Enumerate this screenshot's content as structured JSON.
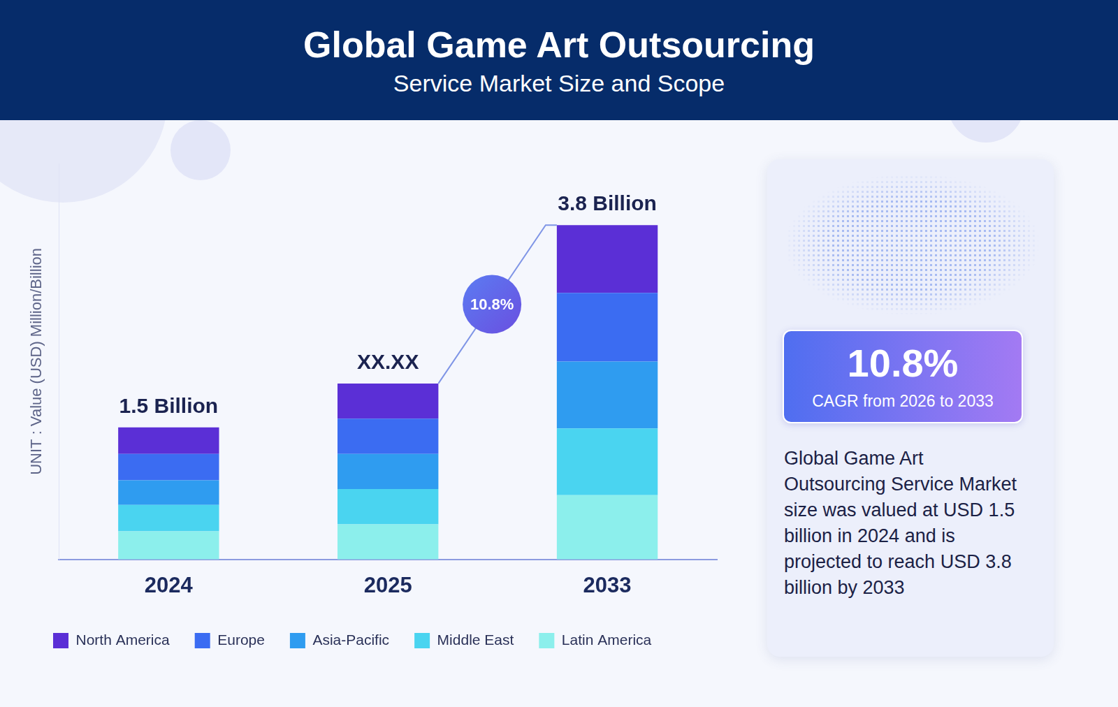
{
  "chart_data": {
    "type": "bar",
    "title": "Global Game Art Outsourcing",
    "subtitle": "Service Market Size and Scope",
    "y_label": "UNIT : Value (USD) Million/Billion",
    "categories": [
      "2024",
      "2025",
      "2033"
    ],
    "series": [
      {
        "name": "North America",
        "color": "#5b2fd6",
        "values": [
          0.3,
          0.4,
          0.77
        ]
      },
      {
        "name": "Europe",
        "color": "#3b6cf2",
        "values": [
          0.3,
          0.4,
          0.78
        ]
      },
      {
        "name": "Asia-Pacific",
        "color": "#2f9cf0",
        "values": [
          0.28,
          0.4,
          0.76
        ]
      },
      {
        "name": "Middle East",
        "color": "#4ad4f0",
        "values": [
          0.3,
          0.4,
          0.76
        ]
      },
      {
        "name": "Latin America",
        "color": "#8cefec",
        "values": [
          0.32,
          0.4,
          0.73
        ]
      }
    ],
    "stacked": true,
    "ylim": [
      0,
      4.5
    ],
    "grid": false,
    "tick_labels": "x",
    "legend": "bottom",
    "annotations": [
      {
        "x": "2024",
        "text": "1.5 Billion"
      },
      {
        "x": "2025",
        "text": "XX.XX"
      },
      {
        "x": "2033",
        "text": "3.8 Billion"
      },
      {
        "from": "2025",
        "to": "2033",
        "text": "10.8%"
      }
    ]
  },
  "panel": {
    "highlight": "10.8%",
    "highlight_label": "CAGR from 2026 to 2033",
    "text": "Global Game Art Outsourcing Service Market size was valued at USD 1.5 billion in 2024 and is projected to reach USD 3.8 billion by 2033"
  }
}
